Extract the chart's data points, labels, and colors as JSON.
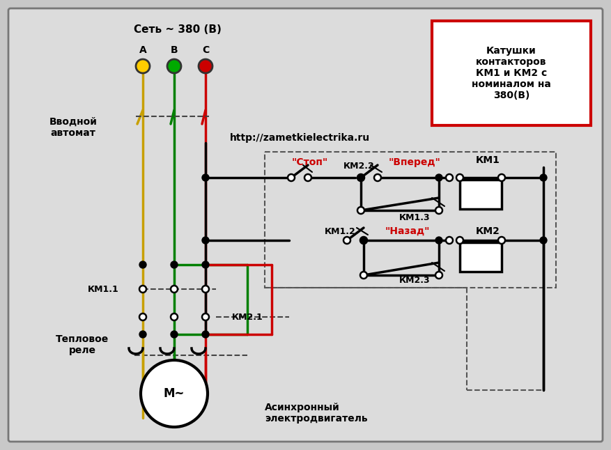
{
  "background_color": "#c8c8c8",
  "inner_bg": "#e0e0e0",
  "text_color": "#000000",
  "red_color": "#cc0000",
  "green_color": "#008000",
  "yellow_color": "#c8a000",
  "url_text": "http://zametkielectrika.ru",
  "legend_text": "Катушки\nконтакторов\nКМ1 и КМ2 с\nноминалом на\n380(В)",
  "label_set": "Сеть ~ 380 (В)",
  "label_a": "A",
  "label_b": "B",
  "label_c": "C",
  "label_vvodnoy": "Вводной\nавтомат",
  "label_km11": "КМ1.1",
  "label_km21": "КМ2.1",
  "label_teplovoe": "Тепловое\nреле",
  "label_motor": "Асинхронный\nэлектродвигатель",
  "label_stop": "\"Стоп\"",
  "label_vpered": "\"Вперед\"",
  "label_nazad": "\"Назад\"",
  "label_km22": "КМ2.2",
  "label_km13": "КМ1.3",
  "label_km12": "КМ1.2",
  "label_km23": "КМ2.3",
  "label_km1": "КМ1",
  "label_km2": "КМ2"
}
